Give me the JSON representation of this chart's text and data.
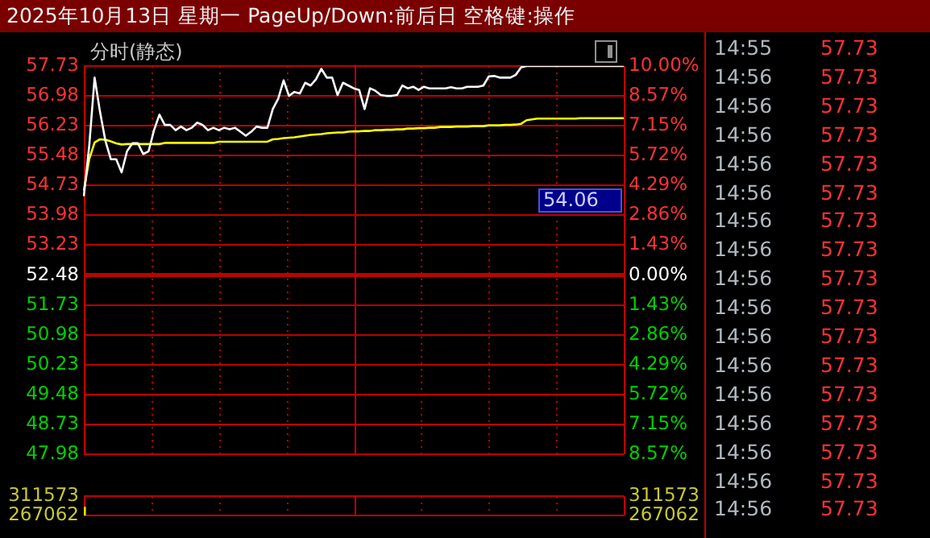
{
  "chart_data": [
    {
      "type": "line",
      "title": "2025年10月13日 星期一 PageUp/Down:前后日 空格键:操作",
      "subtitle": "分时(静态)",
      "categories": [
        null,
        null,
        null,
        null,
        null,
        null,
        null,
        null,
        null,
        null,
        null,
        null,
        null,
        null,
        null,
        null,
        null,
        null,
        null,
        null,
        null,
        null,
        null,
        null,
        null,
        null,
        null,
        null,
        null,
        null,
        null,
        null,
        null,
        null,
        null,
        null,
        null,
        null,
        null,
        null,
        null,
        null,
        null,
        null,
        null,
        null,
        null,
        null,
        null,
        null,
        null,
        null,
        null,
        null,
        null,
        null,
        null,
        null,
        null,
        null,
        null,
        null,
        null,
        null,
        null,
        null,
        null,
        null,
        null,
        null,
        null,
        null,
        null,
        null,
        null,
        null,
        null,
        null,
        null,
        null,
        null,
        null,
        null,
        null,
        null,
        null,
        null,
        null,
        null,
        null,
        null,
        null,
        null,
        null,
        null,
        null,
        null,
        null,
        null,
        null,
        null
      ],
      "series": [
        {
          "color": "#ffffff",
          "values": [
            54.46,
            55.72,
            57.44,
            56.58,
            55.85,
            55.39,
            55.39,
            55.06,
            55.59,
            55.79,
            55.79,
            55.52,
            55.59,
            56.12,
            56.51,
            56.25,
            56.25,
            56.12,
            56.21,
            56.12,
            56.18,
            56.31,
            56.25,
            56.12,
            56.18,
            56.12,
            56.18,
            56.14,
            56.18,
            56.08,
            55.98,
            56.08,
            56.21,
            56.18,
            56.18,
            56.65,
            56.91,
            57.37,
            56.98,
            57.08,
            57.04,
            57.31,
            57.24,
            57.4,
            57.66,
            57.44,
            57.44,
            57.0,
            57.31,
            57.24,
            57.17,
            57.13,
            56.65,
            57.17,
            57.11,
            57.0,
            56.98,
            56.98,
            57.0,
            57.24,
            57.17,
            57.21,
            57.13,
            57.21,
            57.17,
            57.17,
            57.17,
            57.17,
            57.2,
            57.17,
            57.17,
            57.21,
            57.21,
            57.21,
            57.24,
            57.47,
            57.48,
            57.44,
            57.44,
            57.44,
            57.51,
            57.7,
            57.73,
            57.73,
            57.73,
            57.73,
            57.73,
            57.73,
            57.73,
            57.73,
            57.73,
            57.73,
            57.73,
            57.73,
            57.73,
            57.73,
            57.73,
            57.73,
            57.73,
            57.73,
            57.73
          ]
        },
        {
          "color": "#ffff00",
          "values": [
            54.6,
            55.39,
            55.81,
            55.89,
            55.88,
            55.84,
            55.79,
            55.76,
            55.77,
            55.77,
            55.77,
            55.77,
            55.77,
            55.77,
            55.77,
            55.8,
            55.8,
            55.8,
            55.8,
            55.8,
            55.8,
            55.8,
            55.8,
            55.8,
            55.8,
            55.83,
            55.83,
            55.83,
            55.83,
            55.83,
            55.83,
            55.83,
            55.83,
            55.83,
            55.83,
            55.89,
            55.9,
            55.92,
            55.93,
            55.94,
            55.96,
            55.98,
            56.0,
            56.01,
            56.02,
            56.04,
            56.05,
            56.06,
            56.06,
            56.08,
            56.09,
            56.09,
            56.1,
            56.1,
            56.12,
            56.12,
            56.13,
            56.13,
            56.14,
            56.14,
            56.16,
            56.16,
            56.17,
            56.17,
            56.18,
            56.18,
            56.2,
            56.2,
            56.2,
            56.21,
            56.21,
            56.21,
            56.22,
            56.22,
            56.22,
            56.24,
            56.24,
            56.24,
            56.25,
            56.25,
            56.26,
            56.28,
            56.37,
            56.39,
            56.41,
            56.41,
            56.41,
            56.41,
            56.41,
            56.41,
            56.41,
            56.41,
            56.42,
            56.42,
            56.42,
            56.42,
            56.42,
            56.42,
            56.42,
            56.42,
            56.42
          ]
        }
      ],
      "ylim": [
        47.98,
        57.73
      ],
      "yticks": [
        57.73,
        56.98,
        56.23,
        55.48,
        54.73,
        53.98,
        53.23,
        52.48,
        51.73,
        50.98,
        50.23,
        49.48,
        48.73,
        47.98
      ],
      "y2lim": [
        -8.57,
        10.0
      ],
      "y2ticks": [
        {
          "value": 10.0,
          "label": "10.00%"
        },
        {
          "value": 8.57,
          "label": "8.57%"
        },
        {
          "value": 7.15,
          "label": "7.15%"
        },
        {
          "value": 5.72,
          "label": "5.72%"
        },
        {
          "value": 4.29,
          "label": "4.29%"
        },
        {
          "value": 2.86,
          "label": "2.86%"
        },
        {
          "value": 1.43,
          "label": "1.43%"
        },
        {
          "value": 0,
          "label": "0.00%"
        },
        {
          "value": -1.43,
          "label": "1.43%"
        },
        {
          "value": -2.86,
          "label": "2.86%"
        },
        {
          "value": -4.29,
          "label": "4.29%"
        },
        {
          "value": -5.72,
          "label": "5.72%"
        },
        {
          "value": -7.15,
          "label": "7.15%"
        },
        {
          "value": -8.57,
          "label": "8.57%"
        }
      ],
      "annotations": [
        "54.06"
      ],
      "ref_lines": [
        {
          "axis": "y",
          "value": 52.48,
          "color": "#c00000"
        }
      ],
      "grid": true,
      "legend": false,
      "marker": "none",
      "line_style": "solid"
    },
    {
      "type": "bar",
      "categories": [
        null,
        null,
        null,
        null,
        null,
        null,
        null,
        null,
        null,
        null,
        null,
        null,
        null,
        null,
        null,
        null,
        null,
        null,
        null,
        null,
        null,
        null,
        null,
        null,
        null,
        null,
        null,
        null,
        null,
        null,
        null,
        null,
        null,
        null,
        null,
        null,
        null,
        null,
        null,
        null,
        null,
        null,
        null,
        null,
        null,
        null,
        null,
        null,
        null,
        null,
        null,
        null,
        null,
        null,
        null,
        null,
        null,
        null,
        null,
        null,
        null,
        null,
        null,
        null,
        null,
        null,
        null,
        null,
        null,
        null,
        null,
        null,
        null,
        null,
        null,
        null,
        null,
        null,
        null,
        null,
        null,
        null,
        null,
        null,
        null,
        null,
        null,
        null,
        null,
        null,
        null,
        null,
        null,
        null,
        null,
        null,
        null,
        null,
        null,
        null,
        null
      ],
      "series": [
        {
          "color": "#e0e000",
          "values": [
            286000,
            null,
            null,
            null,
            null,
            null,
            null,
            null,
            null,
            null,
            null,
            null,
            null,
            null,
            null,
            null,
            null,
            null,
            null,
            null,
            null,
            null,
            null,
            null,
            null,
            null,
            null,
            null,
            null,
            null,
            null,
            null,
            null,
            null,
            null,
            null,
            null,
            null,
            null,
            null,
            null,
            null,
            null,
            null,
            null,
            null,
            null,
            null,
            null,
            null,
            null,
            null,
            null,
            null,
            null,
            null,
            null,
            null,
            null,
            null,
            null,
            null,
            null,
            null,
            null,
            null,
            null,
            null,
            null,
            null,
            null,
            null,
            null,
            null,
            null,
            null,
            null,
            null,
            null,
            null,
            null,
            null,
            null,
            null,
            null,
            null,
            null,
            null,
            null,
            null,
            null,
            null,
            null,
            null,
            null,
            null,
            null,
            null,
            null,
            null,
            null
          ]
        }
      ],
      "ylim": [
        267062,
        311573
      ],
      "yticks": [
        311573,
        267062
      ],
      "y2lim": [
        267062,
        311573
      ],
      "y2ticks": [
        311573,
        267062
      ],
      "grid": true,
      "legend": false
    },
    {
      "type": "other",
      "annotations": [
        "14:55",
        "57.73",
        "14:56",
        "57.73",
        "14:56",
        "57.73",
        "14:56",
        "57.73",
        "14:56",
        "57.73",
        "14:56",
        "57.73",
        "14:56",
        "57.73",
        "14:56",
        "57.73",
        "14:56",
        "57.73",
        "14:56",
        "57.73",
        "14:56",
        "57.73",
        "14:56",
        "57.73",
        "14:56",
        "57.73",
        "14:56",
        "57.73",
        "14:56",
        "57.73",
        "14:56",
        "57.73",
        "14:56",
        "57.73"
      ]
    }
  ]
}
